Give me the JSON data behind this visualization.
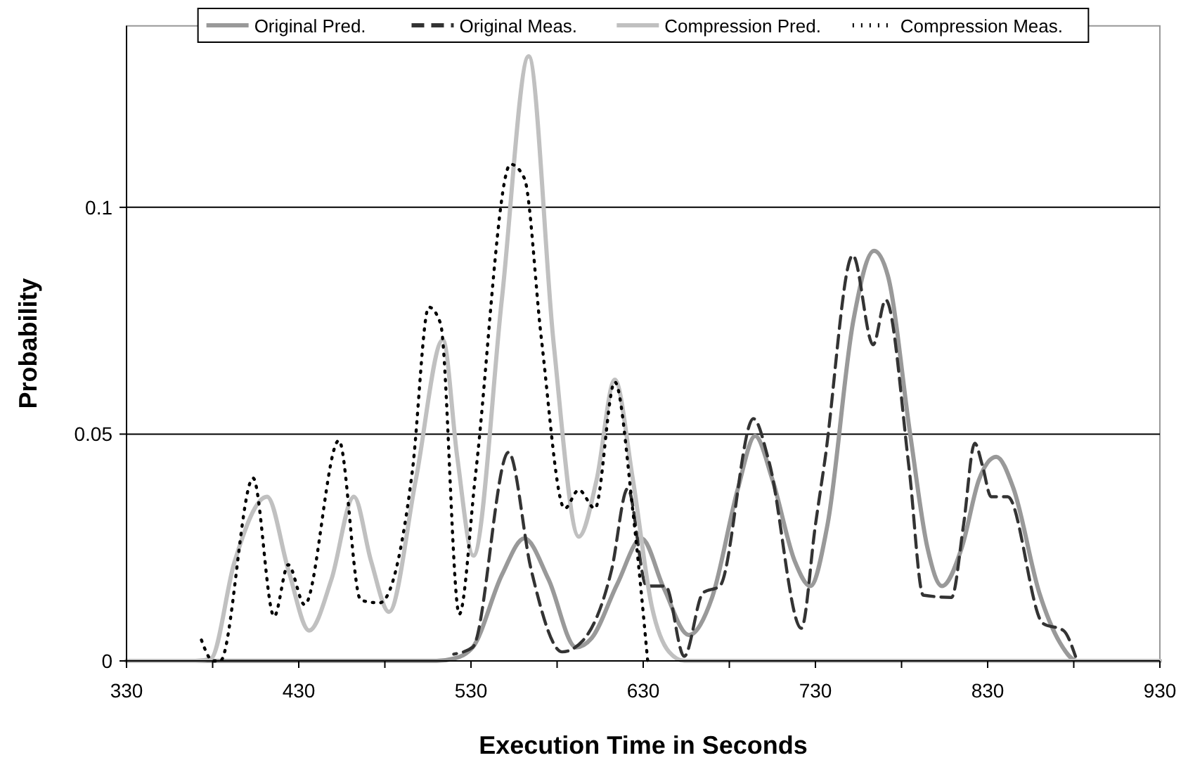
{
  "chart_data": {
    "type": "line",
    "xlabel": "Execution Time in Seconds",
    "ylabel": "Probability",
    "xlim": [
      330,
      930
    ],
    "ylim": [
      0,
      0.14
    ],
    "xticks": [
      330,
      {
        "value": 380,
        "label": null
      },
      430,
      {
        "value": 480,
        "label": null
      },
      530,
      {
        "value": 580,
        "label": null
      },
      630,
      {
        "value": 680,
        "label": null
      },
      730,
      {
        "value": 780,
        "label": null
      },
      830,
      {
        "value": 880,
        "label": null
      },
      930
    ],
    "yticks": [
      0,
      0.05,
      0.1
    ],
    "grid": "y",
    "legend": "top",
    "series": [
      {
        "name": "Original Pred.",
        "color": "#999999",
        "line_style": "solid",
        "x": [
          330,
          510,
          520,
          531,
          548,
          561,
          575,
          591,
          600,
          615,
          629,
          642,
          656.5,
          670,
          685,
          695,
          705,
          718,
          727,
          737,
          752,
          764,
          772,
          785,
          795,
          803.5,
          815,
          825,
          835,
          845,
          860,
          872,
          882,
          930
        ],
        "values": [
          0,
          0,
          0.0005,
          0.003,
          0.019,
          0.027,
          0.018,
          0.003,
          0.005,
          0.017,
          0.027,
          0.016,
          0.0057,
          0.014,
          0.038,
          0.0496,
          0.04,
          0.022,
          0.0165,
          0.03,
          0.075,
          0.0904,
          0.085,
          0.05,
          0.025,
          0.0165,
          0.025,
          0.04,
          0.045,
          0.038,
          0.015,
          0.004,
          0,
          0
        ]
      },
      {
        "name": "Original Meas.",
        "color": "#333333",
        "line_style": "dashed",
        "x": [
          520,
          531,
          551.8,
          565,
          583,
          595,
          611.6,
          621,
          632,
          643,
          653.8,
          664.7,
          674.5,
          694,
          703,
          721.8,
          730,
          735.4,
          751.7,
          763.5,
          770.8,
          784.4,
          792.6,
          809,
          816,
          822.5,
          827,
          832,
          841.6,
          862,
          874,
          881
        ],
        "values": [
          0.0015,
          0.003,
          0.046,
          0.02,
          0.002,
          0.0045,
          0.02,
          0.038,
          0.0165,
          0.0165,
          0.001,
          0.015,
          0.0165,
          0.0534,
          0.044,
          0.0072,
          0.03,
          0.044,
          0.0894,
          0.0697,
          0.0796,
          0.0424,
          0.0145,
          0.014,
          0.03,
          0.048,
          0.043,
          0.0362,
          0.0362,
          0.0083,
          0.0067,
          0.001
        ]
      },
      {
        "name": "Compression Pred.",
        "color": "#c0c0c0",
        "line_style": "solid",
        "x": [
          330,
          370,
          379,
          392.6,
          411.6,
          424,
          436,
          449,
          462,
          472,
          482.4,
          498,
          513.7,
          522,
          531.4,
          548,
          563.5,
          578,
          592.6,
          603,
          613.5,
          624,
          635,
          645,
          654,
          930
        ],
        "values": [
          0,
          0,
          0.0005,
          0.0217,
          0.0362,
          0.02,
          0.0067,
          0.018,
          0.0362,
          0.022,
          0.0108,
          0.04,
          0.0708,
          0.045,
          0.0232,
          0.08,
          0.1333,
          0.07,
          0.0274,
          0.04,
          0.062,
          0.04,
          0.012,
          0.002,
          0,
          0
        ]
      },
      {
        "name": "Compression Meas.",
        "color": "#000000",
        "line_style": "dotted",
        "x": [
          373.5,
          380.3,
          384.4,
          403.5,
          415.7,
          423.9,
          433.4,
          453.3,
          466,
          477,
          496,
          505.5,
          512.3,
          523.2,
          532.7,
          553,
          561,
          570.8,
          584.4,
          592.6,
          602,
          613.5,
          624,
          632.6
        ],
        "values": [
          0.0046,
          0,
          0,
          0.0403,
          0.0098,
          0.0212,
          0.0124,
          0.0486,
          0.0134,
          0.0128,
          0.042,
          0.078,
          0.0744,
          0.0103,
          0.0413,
          0.1095,
          0.1064,
          0.0713,
          0.0336,
          0.0377,
          0.0336,
          0.0615,
          0.033,
          0
        ]
      }
    ]
  }
}
